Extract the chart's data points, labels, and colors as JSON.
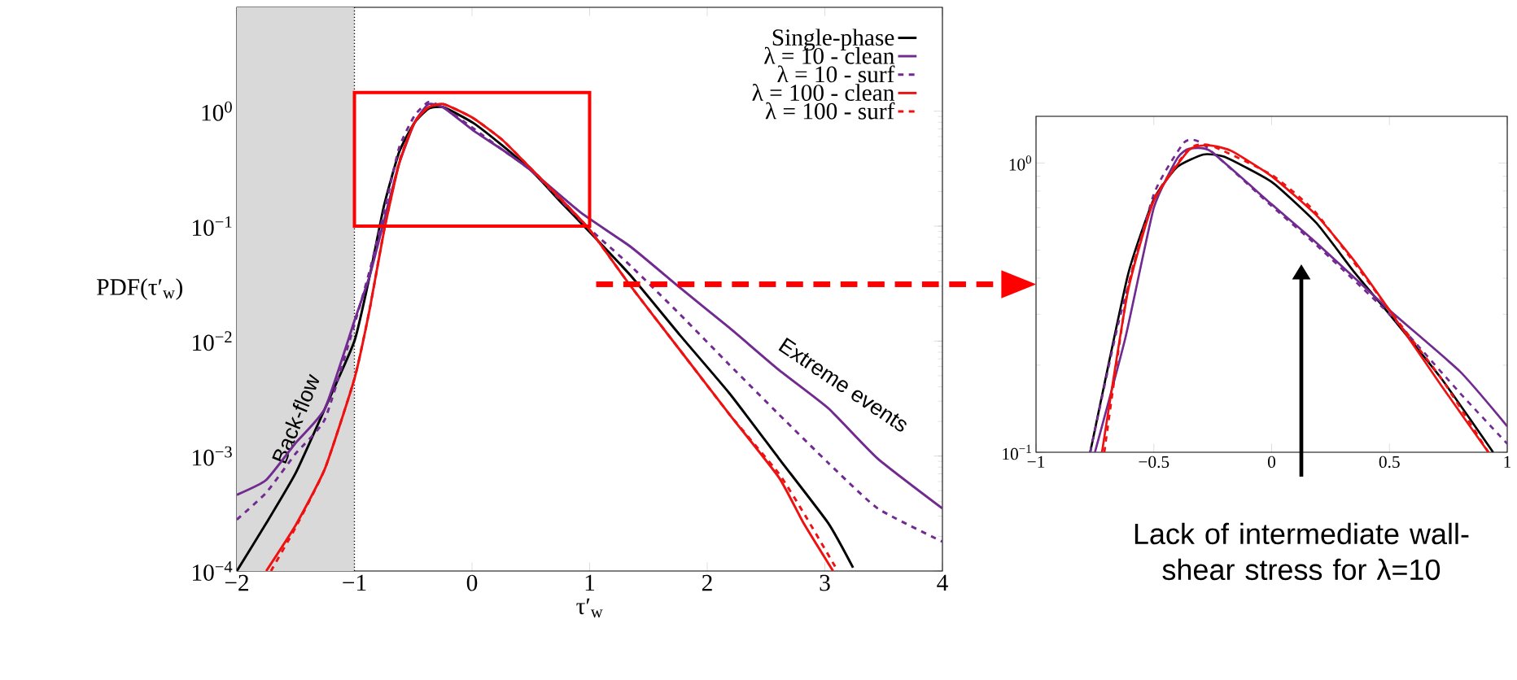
{
  "chart_data": [
    {
      "type": "line",
      "xlabel": "τ′$_{w}$",
      "ylabel": "PDF(τ′$_{w}$)",
      "log": true,
      "legend": "top right",
      "xlim": [
        -2,
        4
      ],
      "ylim": [
        0.0001,
        8
      ],
      "xticks": [
        {
          "value": -2,
          "label": "−2"
        },
        {
          "value": -1,
          "label": "−1"
        },
        0,
        1,
        2,
        3,
        4
      ],
      "yticks": [
        {
          "value": 0.0001,
          "label": "10$^{−4}$"
        },
        {
          "value": 0.001,
          "label": "10$^{−3}$"
        },
        {
          "value": 0.01,
          "label": "10$^{−2}$"
        },
        {
          "value": 0.1,
          "label": "10$^{−1}$"
        },
        {
          "value": 1,
          "label": "10$^{0}$"
        }
      ],
      "bands": [
        {
          "axis": "x",
          "from": -2,
          "to": -1,
          "label": "Back-flow",
          "color": "#d9d9d9"
        }
      ],
      "ref_lines": [
        {
          "axis": "x",
          "value": -1,
          "color": "#000000",
          "line_style": "dotted"
        }
      ],
      "annotations": [
        "Extreme events"
      ],
      "series": [
        {
          "name": "Single-phase",
          "color": "#000000",
          "line_style": "solid",
          "x": [
            -2,
            -1.75,
            -1.5,
            -1.25,
            -1.0,
            -0.87,
            -0.75,
            -0.62,
            -0.49,
            -0.37,
            -0.24,
            0.01,
            0.26,
            0.51,
            0.76,
            1.0,
            1.35,
            1.77,
            2.19,
            2.61,
            3.03,
            3.24
          ],
          "values": [
            0.0001,
            0.00026,
            0.00071,
            0.0026,
            0.01,
            0.037,
            0.148,
            0.44,
            0.79,
            1.05,
            1.08,
            0.79,
            0.5,
            0.3,
            0.16,
            0.089,
            0.037,
            0.0112,
            0.0035,
            0.00095,
            0.00026,
            0.000107
          ]
        },
        {
          "name": "λ = 10 - clean",
          "color": "#712a8f",
          "line_style": "solid",
          "x": [
            -2,
            -1.75,
            -1.5,
            -1.25,
            -1.0,
            -0.87,
            -0.75,
            -0.62,
            -0.49,
            -0.37,
            -0.24,
            0.01,
            0.26,
            0.51,
            0.93,
            1.35,
            1.77,
            2.19,
            2.61,
            3.03,
            3.45,
            4.0
          ],
          "values": [
            0.00046,
            0.00062,
            0.0013,
            0.0026,
            0.015,
            0.037,
            0.11,
            0.35,
            0.79,
            1.15,
            1.07,
            0.68,
            0.46,
            0.3,
            0.13,
            0.066,
            0.029,
            0.013,
            0.0056,
            0.0026,
            0.00095,
            0.00035
          ]
        },
        {
          "name": "λ = 10 - surf",
          "color": "#712a8f",
          "line_style": "dashed",
          "x": [
            -2,
            -1.75,
            -1.5,
            -1.25,
            -1.0,
            -0.87,
            -0.75,
            -0.62,
            -0.49,
            -0.37,
            -0.24,
            0.01,
            0.26,
            0.51,
            0.93,
            1.35,
            1.77,
            2.19,
            2.61,
            3.03,
            3.45,
            4.0
          ],
          "values": [
            0.00028,
            0.00048,
            0.00105,
            0.0021,
            0.014,
            0.041,
            0.13,
            0.48,
            0.91,
            1.2,
            1.07,
            0.71,
            0.46,
            0.3,
            0.11,
            0.045,
            0.017,
            0.0062,
            0.0023,
            0.00087,
            0.00035,
            0.00018
          ]
        },
        {
          "name": "λ = 100 - clean",
          "color": "#ee1111",
          "line_style": "solid",
          "x": [
            -1.75,
            -1.5,
            -1.25,
            -1.0,
            -0.87,
            -0.75,
            -0.62,
            -0.49,
            -0.37,
            -0.24,
            0.01,
            0.26,
            0.51,
            0.76,
            1.0,
            1.35,
            1.77,
            2.19,
            2.61,
            2.82,
            3.07
          ],
          "values": [
            0.0001,
            0.00025,
            0.00078,
            0.0047,
            0.019,
            0.089,
            0.35,
            0.79,
            1.08,
            1.15,
            0.87,
            0.56,
            0.31,
            0.17,
            0.093,
            0.03,
            0.0083,
            0.0023,
            0.00065,
            0.00026,
            0.0001
          ]
        },
        {
          "name": "λ = 100 - surf",
          "color": "#ee1111",
          "line_style": "dashed",
          "x": [
            -1.71,
            -1.5,
            -1.25,
            -1.0,
            -0.87,
            -0.75,
            -0.62,
            -0.49,
            -0.37,
            -0.24,
            0.01,
            0.26,
            0.51,
            0.76,
            1.0,
            1.35,
            1.77,
            2.19,
            2.61,
            2.82,
            3.11
          ],
          "values": [
            0.0001,
            0.00024,
            0.00078,
            0.0047,
            0.019,
            0.09,
            0.36,
            0.8,
            1.09,
            1.15,
            0.87,
            0.56,
            0.31,
            0.17,
            0.093,
            0.03,
            0.0083,
            0.0023,
            0.0007,
            0.00032,
            0.0001
          ]
        }
      ]
    },
    {
      "type": "line",
      "log": true,
      "xlim": [
        -1,
        1
      ],
      "ylim": [
        0.1,
        1.45
      ],
      "xticks": [
        {
          "value": -1,
          "label": "−1"
        },
        {
          "value": -0.5,
          "label": "−0.5"
        },
        0,
        0.5,
        1
      ],
      "yticks": [
        {
          "value": 0.1,
          "label": "10$^{−1}$"
        },
        {
          "value": 1,
          "label": "10$^{0}$"
        }
      ],
      "annotations": [
        "Lack of intermediate wall-shear stress for λ=10"
      ],
      "series": [
        {
          "color": "#000000",
          "line_style": "solid",
          "x": [
            -0.77,
            -0.61,
            -0.5,
            -0.4,
            -0.29,
            -0.2,
            0.0,
            0.19,
            0.35,
            0.5,
            0.72,
            0.94
          ],
          "values": [
            0.1,
            0.41,
            0.75,
            0.97,
            1.07,
            1.05,
            0.86,
            0.62,
            0.42,
            0.3,
            0.18,
            0.1
          ]
        },
        {
          "color": "#712a8f",
          "line_style": "solid",
          "x": [
            -0.75,
            -0.62,
            -0.5,
            -0.4,
            -0.35,
            -0.26,
            0.0,
            0.19,
            0.5,
            0.8,
            1.0
          ],
          "values": [
            0.1,
            0.25,
            0.7,
            1.04,
            1.12,
            1.1,
            0.72,
            0.53,
            0.31,
            0.19,
            0.123
          ]
        },
        {
          "color": "#712a8f",
          "line_style": "dashed",
          "x": [
            -0.77,
            -0.65,
            -0.5,
            -0.37,
            -0.29,
            0.0,
            0.19,
            0.5,
            0.8,
            1.0
          ],
          "values": [
            0.1,
            0.28,
            0.78,
            1.18,
            1.16,
            0.71,
            0.52,
            0.3,
            0.16,
            0.107
          ]
        },
        {
          "color": "#ee1111",
          "line_style": "solid",
          "x": [
            -0.72,
            -0.61,
            -0.5,
            -0.35,
            -0.26,
            -0.17,
            0.0,
            0.19,
            0.35,
            0.5,
            0.72,
            0.92
          ],
          "values": [
            0.1,
            0.36,
            0.74,
            1.11,
            1.15,
            1.1,
            0.9,
            0.66,
            0.46,
            0.31,
            0.17,
            0.1
          ]
        },
        {
          "color": "#ee1111",
          "line_style": "dashed",
          "x": [
            -0.71,
            -0.61,
            -0.5,
            -0.35,
            -0.26,
            0.0,
            0.19,
            0.5,
            0.72,
            0.92
          ],
          "values": [
            0.1,
            0.37,
            0.75,
            1.12,
            1.15,
            0.91,
            0.67,
            0.31,
            0.18,
            0.1
          ]
        }
      ]
    }
  ]
}
